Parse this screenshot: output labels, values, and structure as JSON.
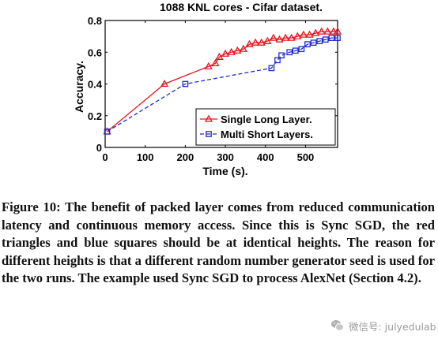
{
  "chart_data": {
    "type": "line",
    "title": "1088 KNL cores - Cifar dataset.",
    "xlabel": "Time (s).",
    "ylabel": "Accuracy.",
    "xlim": [
      0,
      580
    ],
    "ylim": [
      0,
      0.8
    ],
    "xticks": [
      0,
      100,
      200,
      300,
      400,
      500
    ],
    "yticks": [
      0,
      0.2,
      0.4,
      0.6,
      0.8
    ],
    "xtick_labels": [
      "0",
      "100",
      "200",
      "300",
      "400",
      "500"
    ],
    "ytick_labels": [
      "0",
      "0.2",
      "0.4",
      "0.6",
      "0.8"
    ],
    "legend_position": "bottom-right",
    "grid": false,
    "series": [
      {
        "name": "Single Long Layer.",
        "color": "#e8141e",
        "marker": "triangle",
        "line_style": "solid",
        "x": [
          5,
          148,
          258,
          275,
          285,
          300,
          315,
          330,
          345,
          360,
          375,
          390,
          405,
          420,
          435,
          450,
          465,
          480,
          495,
          510,
          525,
          540,
          555,
          570,
          580
        ],
        "y": [
          0.1,
          0.4,
          0.51,
          0.53,
          0.57,
          0.59,
          0.6,
          0.61,
          0.62,
          0.65,
          0.66,
          0.66,
          0.67,
          0.69,
          0.68,
          0.69,
          0.69,
          0.7,
          0.71,
          0.71,
          0.72,
          0.73,
          0.73,
          0.73,
          0.73
        ]
      },
      {
        "name": "Multi Short Layers.",
        "color": "#1f2ccf",
        "marker": "square",
        "line_style": "dashed",
        "x": [
          5,
          200,
          415,
          430,
          440,
          460,
          475,
          490,
          505,
          520,
          535,
          550,
          565,
          580
        ],
        "y": [
          0.1,
          0.4,
          0.5,
          0.55,
          0.58,
          0.6,
          0.61,
          0.62,
          0.65,
          0.66,
          0.67,
          0.68,
          0.69,
          0.69
        ]
      }
    ]
  },
  "caption": "Figure 10: The benefit of packed layer comes from reduced communication latency and continuous memory access. Since this is Sync SGD, the red triangles and blue squares should be at identical heights. The reason for different heights is that a different random number generator seed is used for the two runs. The example used Sync SGD to process AlexNet (Section 4.2).",
  "watermark": {
    "text": "微信号: julyedulab",
    "icon": "wechat-icon"
  }
}
